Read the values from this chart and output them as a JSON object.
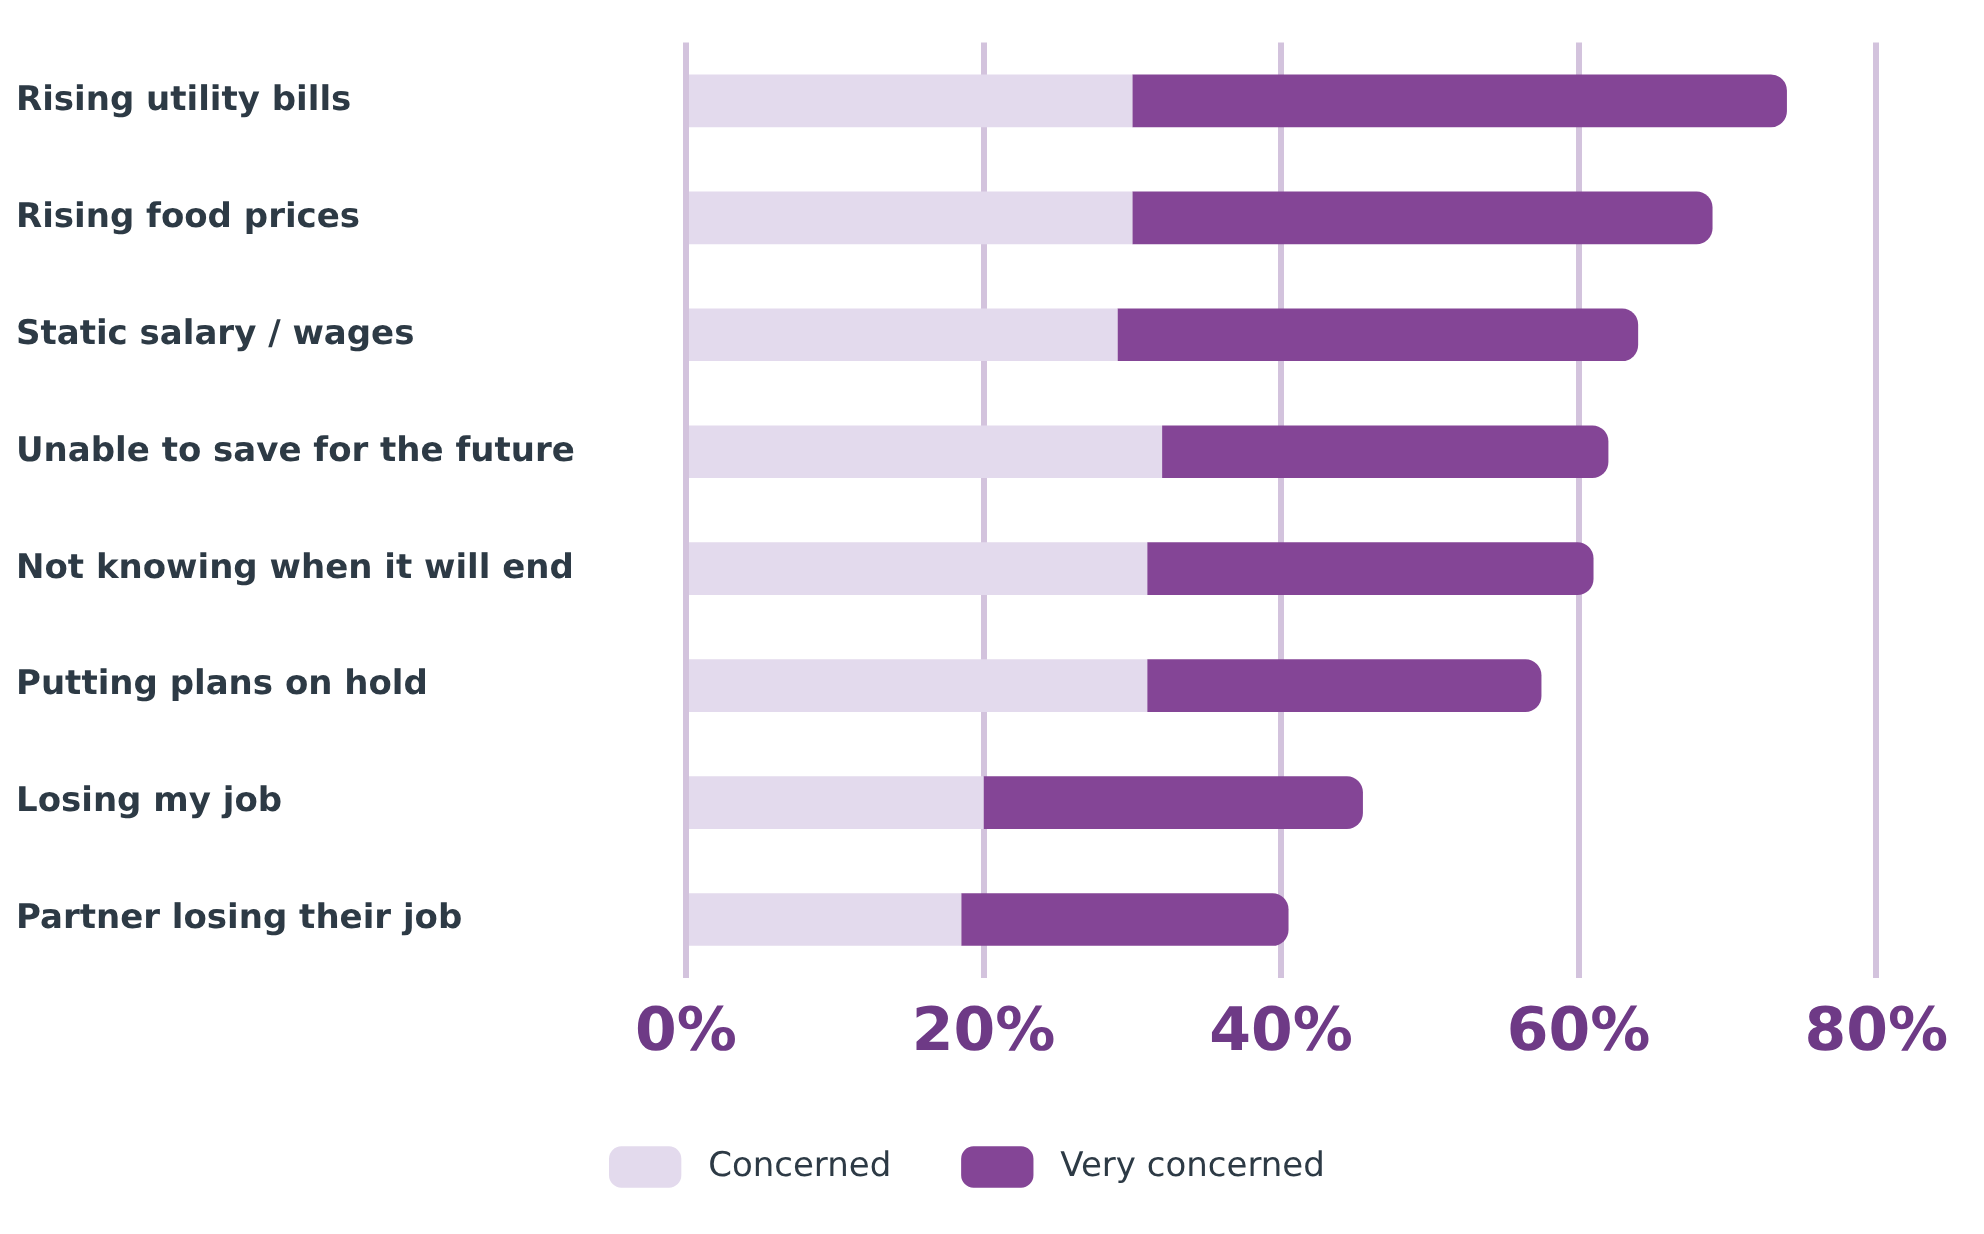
{
  "chart_data": {
    "type": "bar",
    "orientation": "horizontal",
    "stacked": true,
    "categories": [
      "Rising utility bills",
      "Rising food prices",
      "Static salary / wages",
      "Unable to save for the future",
      "Not knowing when it will end",
      "Putting plans on hold",
      "Losing my job",
      "Partner losing their job"
    ],
    "series": [
      {
        "name": "Concerned",
        "color": "#e3daed",
        "values": [
          30,
          30,
          29,
          32,
          31,
          31,
          20,
          18.5
        ]
      },
      {
        "name": "Very concerned",
        "color": "#844596",
        "values": [
          44,
          39,
          35,
          30,
          30,
          26.5,
          25.5,
          22
        ]
      }
    ],
    "xlim": [
      0,
      80
    ],
    "xticks": [
      {
        "value": 0,
        "label": "0%"
      },
      {
        "value": 20,
        "label": "20%"
      },
      {
        "value": 40,
        "label": "40%"
      },
      {
        "value": 60,
        "label": "60%"
      },
      {
        "value": 80,
        "label": "80%"
      }
    ],
    "grid": "x",
    "legend": "bottom"
  }
}
